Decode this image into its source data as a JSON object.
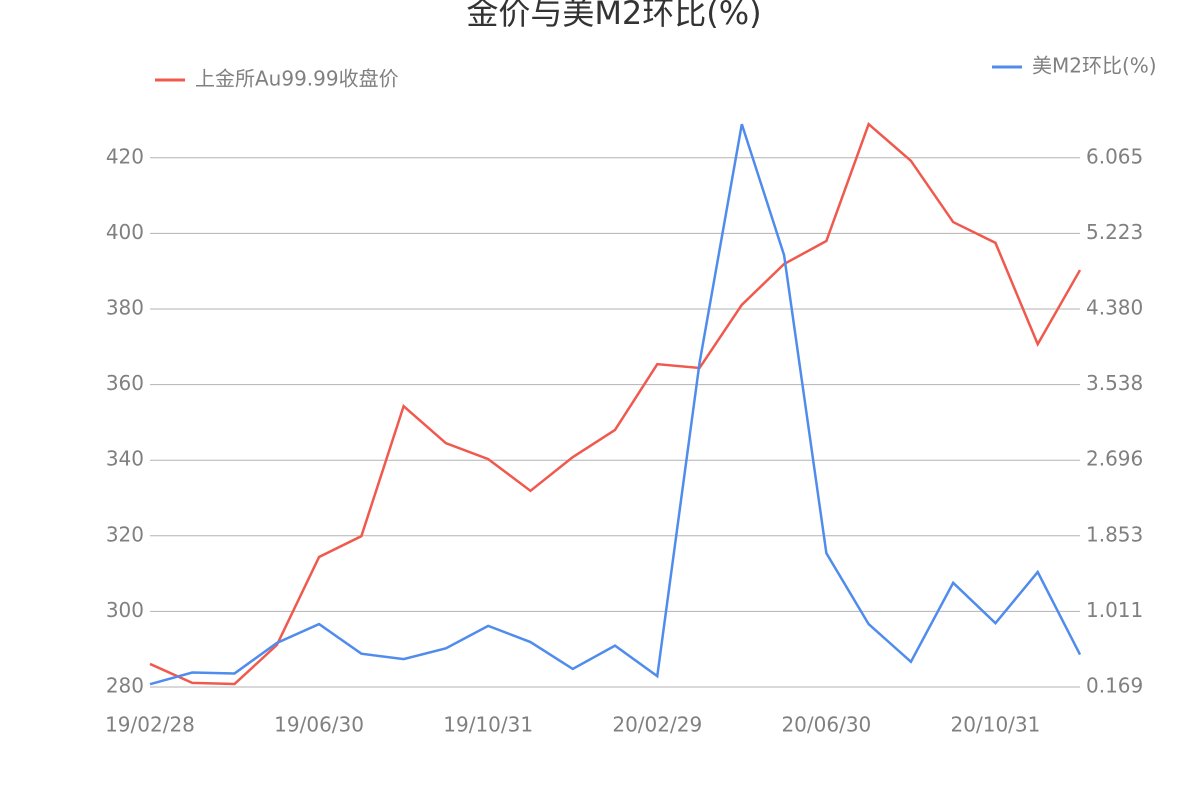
{
  "chart_data": {
    "type": "line",
    "title": "金价与美M2环比(%)",
    "categories": [
      "19/02/28",
      null,
      null,
      null,
      "19/06/30",
      null,
      null,
      null,
      "19/10/31",
      null,
      null,
      null,
      "20/02/29",
      null,
      null,
      null,
      "20/06/30",
      null,
      null,
      null,
      "20/10/31",
      null,
      null
    ],
    "series": [
      {
        "name": "上金所Au99.99收盘价",
        "color": "#f0594e",
        "values": [
          286.1,
          281.1,
          280.8,
          291.1,
          314.4,
          319.9,
          354.3,
          344.5,
          340.3,
          331.9,
          340.8,
          348.0,
          365.4,
          364.4,
          381.1,
          391.9,
          398.0,
          428.9,
          419.2,
          403.0,
          397.5,
          370.7,
          390.3
        ]
      },
      {
        "name": "美M2环比(%)",
        "color": "#4f8ced",
        "axis": "y2",
        "values": [
          0.2,
          0.33,
          0.32,
          0.66,
          0.87,
          0.54,
          0.48,
          0.6,
          0.85,
          0.67,
          0.37,
          0.63,
          0.29,
          3.78,
          6.44,
          4.98,
          1.66,
          0.87,
          0.45,
          1.33,
          0.88,
          1.45,
          0.53
        ]
      }
    ],
    "ylim": [
      280,
      430
    ],
    "yticks": [
      280,
      300,
      320,
      340,
      360,
      380,
      400,
      420
    ],
    "y2lim": [
      0.169,
      6.4865
    ],
    "y2ticks": [
      0.169,
      1.011,
      1.853,
      2.696,
      3.538,
      {
        "value": 4.38,
        "label": "4.380"
      },
      5.223,
      6.065
    ],
    "grid": true
  }
}
